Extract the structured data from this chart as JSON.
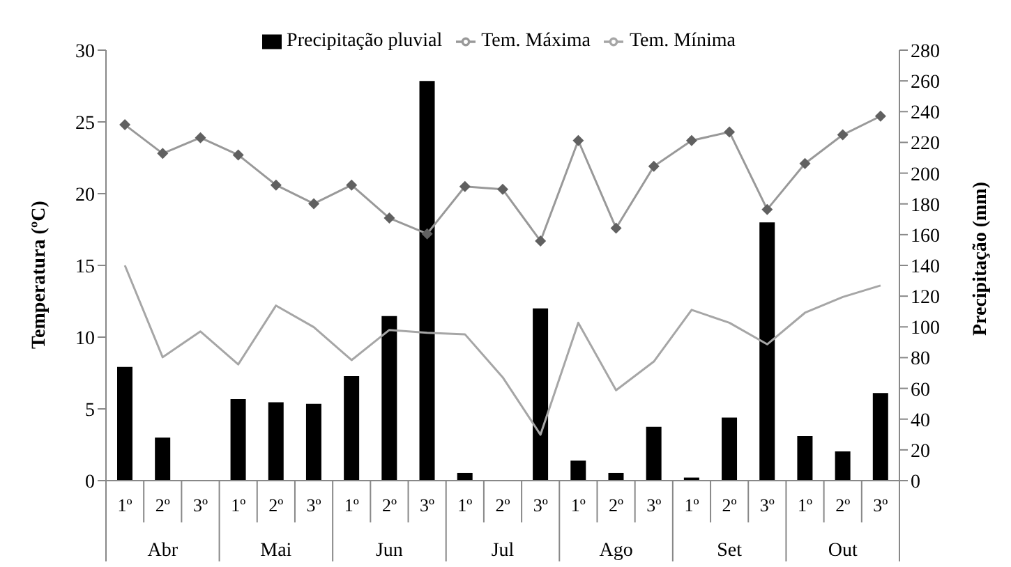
{
  "chart_data": {
    "type": "line",
    "xlabel": null,
    "ylabel": "Temperatura (ºC)",
    "y2label": "Precipitação (mm)",
    "categories": [
      "1º",
      "2º",
      "3º",
      "1º",
      "2º",
      "3º",
      "1º",
      "2º",
      "3º",
      "1º",
      "2º",
      "3º",
      "1º",
      "2º",
      "3º",
      "1º",
      "2º",
      "3º",
      "1º",
      "2º",
      "3º"
    ],
    "annotations": [
      "Abr",
      "Mai",
      "Jun",
      "Jul",
      "Ago",
      "Set",
      "Out"
    ],
    "series": [
      {
        "name": "Precipitação pluvial",
        "type": "bar",
        "axis": "y2",
        "color": "#000000",
        "values": [
          74,
          28,
          0,
          53,
          51,
          50,
          68,
          107,
          260,
          5,
          0,
          112,
          13,
          5,
          35,
          2,
          41,
          168,
          29,
          19,
          57
        ]
      },
      {
        "name": "Tem. Máxima",
        "color": "#999999",
        "marker": "diamond",
        "values": [
          24.8,
          22.8,
          23.9,
          22.7,
          20.6,
          19.3,
          20.6,
          18.3,
          17.2,
          20.5,
          20.3,
          16.7,
          23.7,
          17.6,
          21.9,
          23.7,
          24.3,
          18.9,
          22.1,
          24.1,
          25.4
        ]
      },
      {
        "name": "Tem. Mínima",
        "color": "#a6a6a6",
        "marker": "none",
        "values": [
          15.0,
          8.6,
          10.4,
          8.1,
          12.2,
          10.7,
          8.4,
          10.5,
          10.3,
          10.2,
          7.2,
          3.2,
          11.0,
          6.3,
          8.3,
          11.9,
          11.0,
          9.5,
          11.7,
          12.8,
          13.6
        ]
      }
    ],
    "ylim": [
      0,
      30
    ],
    "yticks": [
      0,
      5,
      10,
      15,
      20,
      25,
      30
    ],
    "y2lim": [
      0,
      280
    ],
    "y2ticks": [
      0,
      20,
      40,
      60,
      80,
      100,
      120,
      140,
      160,
      180,
      200,
      220,
      240,
      260,
      280
    ],
    "grid": false,
    "legend": "top"
  }
}
